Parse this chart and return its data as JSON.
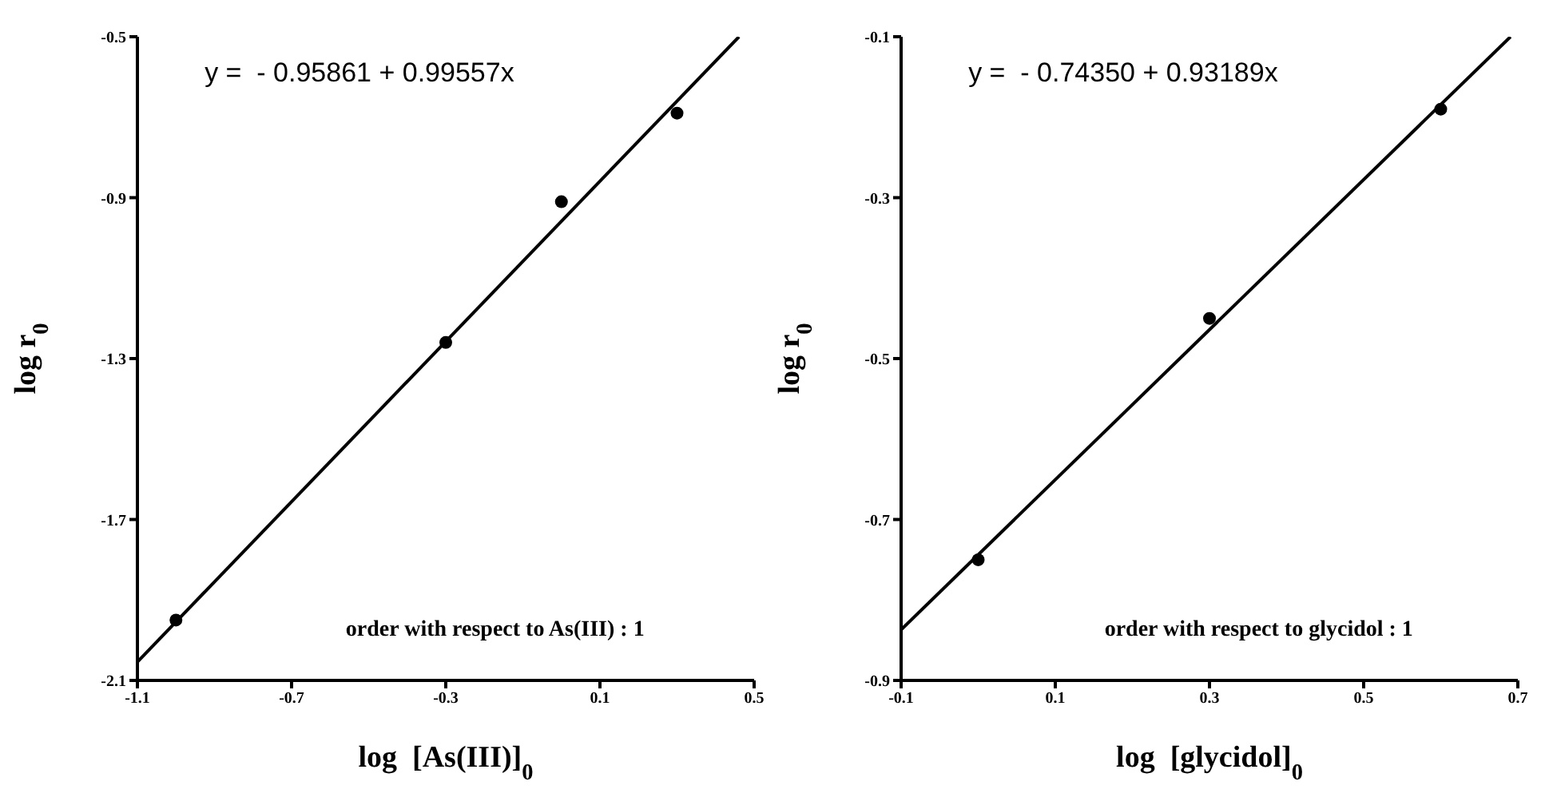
{
  "chart_data": [
    {
      "type": "scatter",
      "xlabel": "log  [As(III)]$_{0}$",
      "ylabel": "log r$_{0}$",
      "xlim": [
        -1.1,
        0.5
      ],
      "xticks": [
        -1.1,
        -0.7,
        -0.3,
        0.1,
        0.5
      ],
      "ylim": [
        -2.1,
        -0.5
      ],
      "yticks": [
        -2.1,
        -1.7,
        -1.3,
        -0.9,
        -0.5
      ],
      "series": [
        {
          "color": "#000000",
          "marker": "circle",
          "x": [
            -1.0,
            -0.3,
            0.0,
            0.3
          ],
          "values": [
            -1.95,
            -1.26,
            -0.91,
            -0.69
          ]
        },
        {
          "type": "line",
          "color": "#000000",
          "line_style": "solid",
          "marker": "none",
          "x": [
            -1.1,
            0.4607
          ],
          "values": [
            -2.054,
            -0.5
          ]
        }
      ],
      "annotations": [
        "y =  - 0.95861 + 0.99557x",
        "order with respect to As(III) : 1"
      ]
    },
    {
      "type": "scatter",
      "xlabel": "log  [glycidol]$_{0}$",
      "ylabel": "log r$_{0}$",
      "xlim": [
        -0.1,
        0.7
      ],
      "xticks": [
        -0.1,
        0.1,
        0.3,
        0.5,
        0.7
      ],
      "ylim": [
        -0.9,
        -0.1
      ],
      "yticks": [
        -0.9,
        -0.7,
        -0.5,
        -0.3,
        -0.1
      ],
      "series": [
        {
          "color": "#000000",
          "marker": "circle",
          "x": [
            0.0,
            0.3,
            0.6
          ],
          "values": [
            -0.75,
            -0.45,
            -0.19
          ]
        },
        {
          "type": "line",
          "color": "#000000",
          "line_style": "solid",
          "marker": "none",
          "x": [
            -0.1,
            0.6905
          ],
          "values": [
            -0.837,
            -0.1
          ]
        }
      ],
      "annotations": [
        "y =  - 0.74350 + 0.93189x",
        "order with respect to glycidol : 1"
      ]
    }
  ]
}
